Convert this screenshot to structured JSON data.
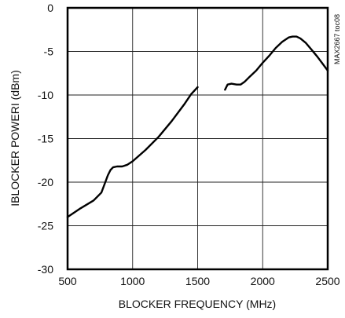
{
  "chart_data": {
    "type": "line",
    "title": "",
    "xlabel": "BLOCKER FREQUENCY (MHz)",
    "ylabel": "IBLOCKER POWERI (dBm)",
    "side_label": "MAX2667 toc08",
    "xlim": [
      500,
      2500
    ],
    "ylim": [
      -30,
      0
    ],
    "x_ticks": [
      500,
      1000,
      1500,
      2000,
      2500
    ],
    "y_ticks": [
      0,
      -5,
      -10,
      -15,
      -20,
      -25,
      -30
    ],
    "grid": true,
    "series": [
      {
        "segments": [
          {
            "x": [
              500,
              600,
              700,
              760,
              790,
              810,
              830,
              850,
              880,
              920,
              960,
              1000,
              1100,
              1200,
              1300,
              1400,
              1450,
              1500
            ],
            "y": [
              -24.0,
              -23.0,
              -22.1,
              -21.2,
              -20.0,
              -19.2,
              -18.6,
              -18.3,
              -18.2,
              -18.2,
              -18.0,
              -17.6,
              -16.3,
              -14.8,
              -13.0,
              -11.0,
              -9.9,
              -9.1
            ]
          },
          {
            "x": [
              1710,
              1730,
              1760,
              1800,
              1830,
              1860,
              1900,
              1950,
              2000,
              2050,
              2100,
              2150,
              2200,
              2230,
              2260,
              2290,
              2330,
              2370,
              2420,
              2460,
              2500
            ],
            "y": [
              -9.4,
              -8.8,
              -8.7,
              -8.8,
              -8.8,
              -8.5,
              -7.9,
              -7.2,
              -6.3,
              -5.5,
              -4.6,
              -3.9,
              -3.4,
              -3.3,
              -3.3,
              -3.5,
              -4.0,
              -4.7,
              -5.6,
              -6.4,
              -7.2
            ]
          }
        ]
      }
    ]
  }
}
